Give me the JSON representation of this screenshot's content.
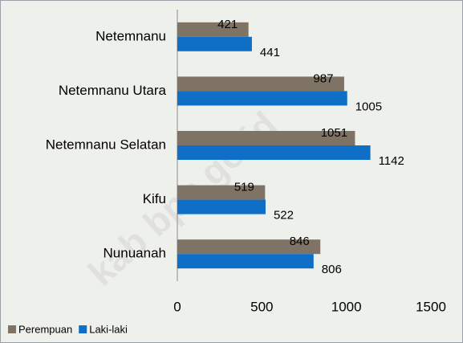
{
  "chart_data": {
    "type": "hbar",
    "categories": [
      "Netemnanu",
      "Netemnanu Utara",
      "Netemnanu Selatan",
      "Kifu",
      "Nunuanah"
    ],
    "series": [
      {
        "name": "Perempuan",
        "color": "#7f7366",
        "values": [
          421,
          987,
          1051,
          519,
          846
        ]
      },
      {
        "name": "Laki-laki",
        "color": "#0f6fc6",
        "values": [
          441,
          1005,
          1142,
          522,
          806
        ]
      }
    ],
    "xlim": [
      0,
      1500
    ],
    "xticks": [
      0,
      500,
      1000,
      1500
    ],
    "legend": "bottom-left",
    "watermark": "kab bps.go.id"
  }
}
